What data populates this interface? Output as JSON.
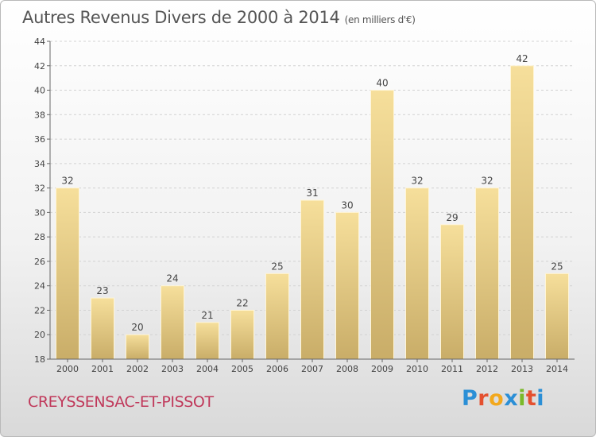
{
  "header": {
    "title": "Autres Revenus Divers de 2000 à 2014",
    "unit": "(en milliers d'€)"
  },
  "footer": {
    "commune": "CREYSSENSAC-ET-PISSOT",
    "logo_letters": [
      {
        "ch": "P",
        "color": "#2b8fd6"
      },
      {
        "ch": "r",
        "color": "#e4502f"
      },
      {
        "ch": "o",
        "color": "#f2a81d"
      },
      {
        "ch": "x",
        "color": "#2b8fd6"
      },
      {
        "ch": "i",
        "color": "#7ab929"
      },
      {
        "ch": "t",
        "color": "#e4502f"
      },
      {
        "ch": "i",
        "color": "#2b8fd6"
      }
    ]
  },
  "chart_data": {
    "type": "bar",
    "categories": [
      "2000",
      "2001",
      "2002",
      "2003",
      "2004",
      "2005",
      "2006",
      "2007",
      "2008",
      "2009",
      "2010",
      "2011",
      "2012",
      "2013",
      "2014"
    ],
    "values": [
      32,
      23,
      20,
      24,
      21,
      22,
      25,
      31,
      30,
      40,
      32,
      29,
      32,
      42,
      25
    ],
    "title": "Autres Revenus Divers de 2000 à 2014",
    "xlabel": "",
    "ylabel": "",
    "ylim": [
      18,
      44
    ],
    "yticks": [
      18,
      20,
      22,
      24,
      26,
      28,
      30,
      32,
      34,
      36,
      38,
      40,
      42,
      44
    ],
    "grid": true,
    "bar_color": "#e8cf87"
  }
}
